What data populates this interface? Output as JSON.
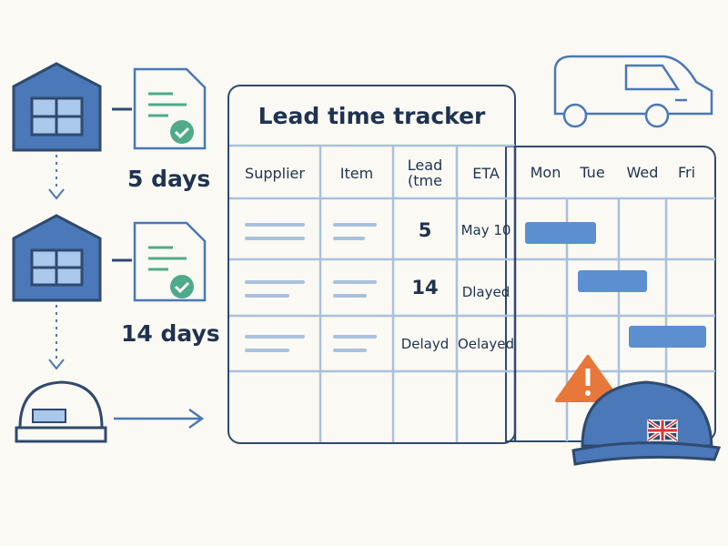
{
  "title": "Lead time tracker",
  "table": {
    "headers": [
      "Supplier",
      "Item",
      "Lead\n(tme",
      "ETA"
    ],
    "rows": [
      {
        "lead": "5",
        "eta": "May 10"
      },
      {
        "lead": "14",
        "eta": "Dlayed"
      },
      {
        "lead": "Delayd",
        "eta": "Oelayed"
      }
    ]
  },
  "calendar": {
    "days": [
      "Mon",
      "Tue",
      "Wed",
      "Fri"
    ]
  },
  "flow": {
    "step1_days": "5 days",
    "step2_days": "14 days"
  },
  "colors": {
    "navy": "#2f4a6e",
    "bar_blue": "#5b8fd0",
    "line_blue": "#a9c1dd",
    "check_green": "#4faa8a",
    "warning_orange": "#e8773a"
  }
}
